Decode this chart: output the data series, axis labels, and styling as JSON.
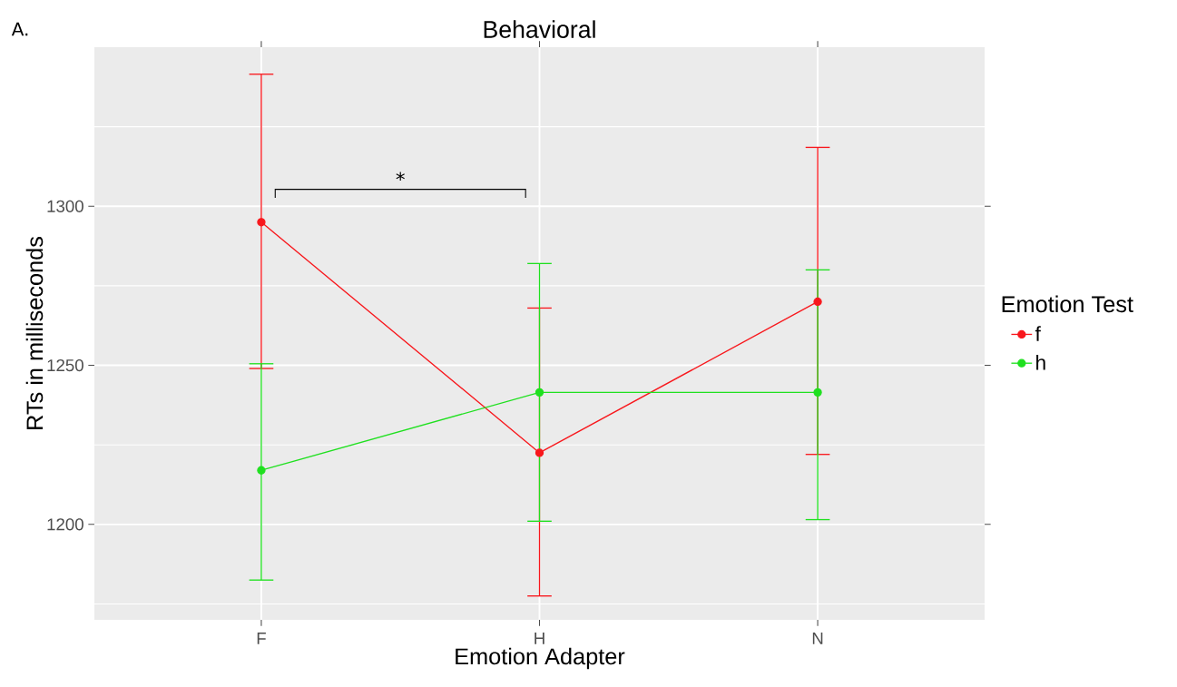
{
  "chart_data": {
    "type": "line",
    "title": "Behavioral",
    "xlabel": "Emotion Adapter",
    "ylabel": "RTs in milliseconds",
    "legend_title": "Emotion Test",
    "categories": [
      "F",
      "H",
      "N"
    ],
    "series": [
      {
        "name": "f",
        "color": "#f8171c",
        "values": [
          1295,
          1222.5,
          1270
        ],
        "errors": [
          [
            1249,
            1341.5
          ],
          [
            1177.5,
            1268
          ],
          [
            1222,
            1318.5
          ]
        ]
      },
      {
        "name": "h",
        "color": "#1fe01f",
        "values": [
          1217,
          1241.5,
          1241.5
        ],
        "errors": [
          [
            1182.5,
            1250.5
          ],
          [
            1201,
            1282
          ],
          [
            1201.5,
            1280
          ]
        ]
      }
    ],
    "ylim": [
      1170,
      1350
    ],
    "yticks": [
      1200,
      1250,
      1300
    ],
    "grid": true,
    "legend": "right",
    "marker": "circle",
    "line_style": "solid",
    "annotations": [
      "A.",
      "*"
    ]
  }
}
